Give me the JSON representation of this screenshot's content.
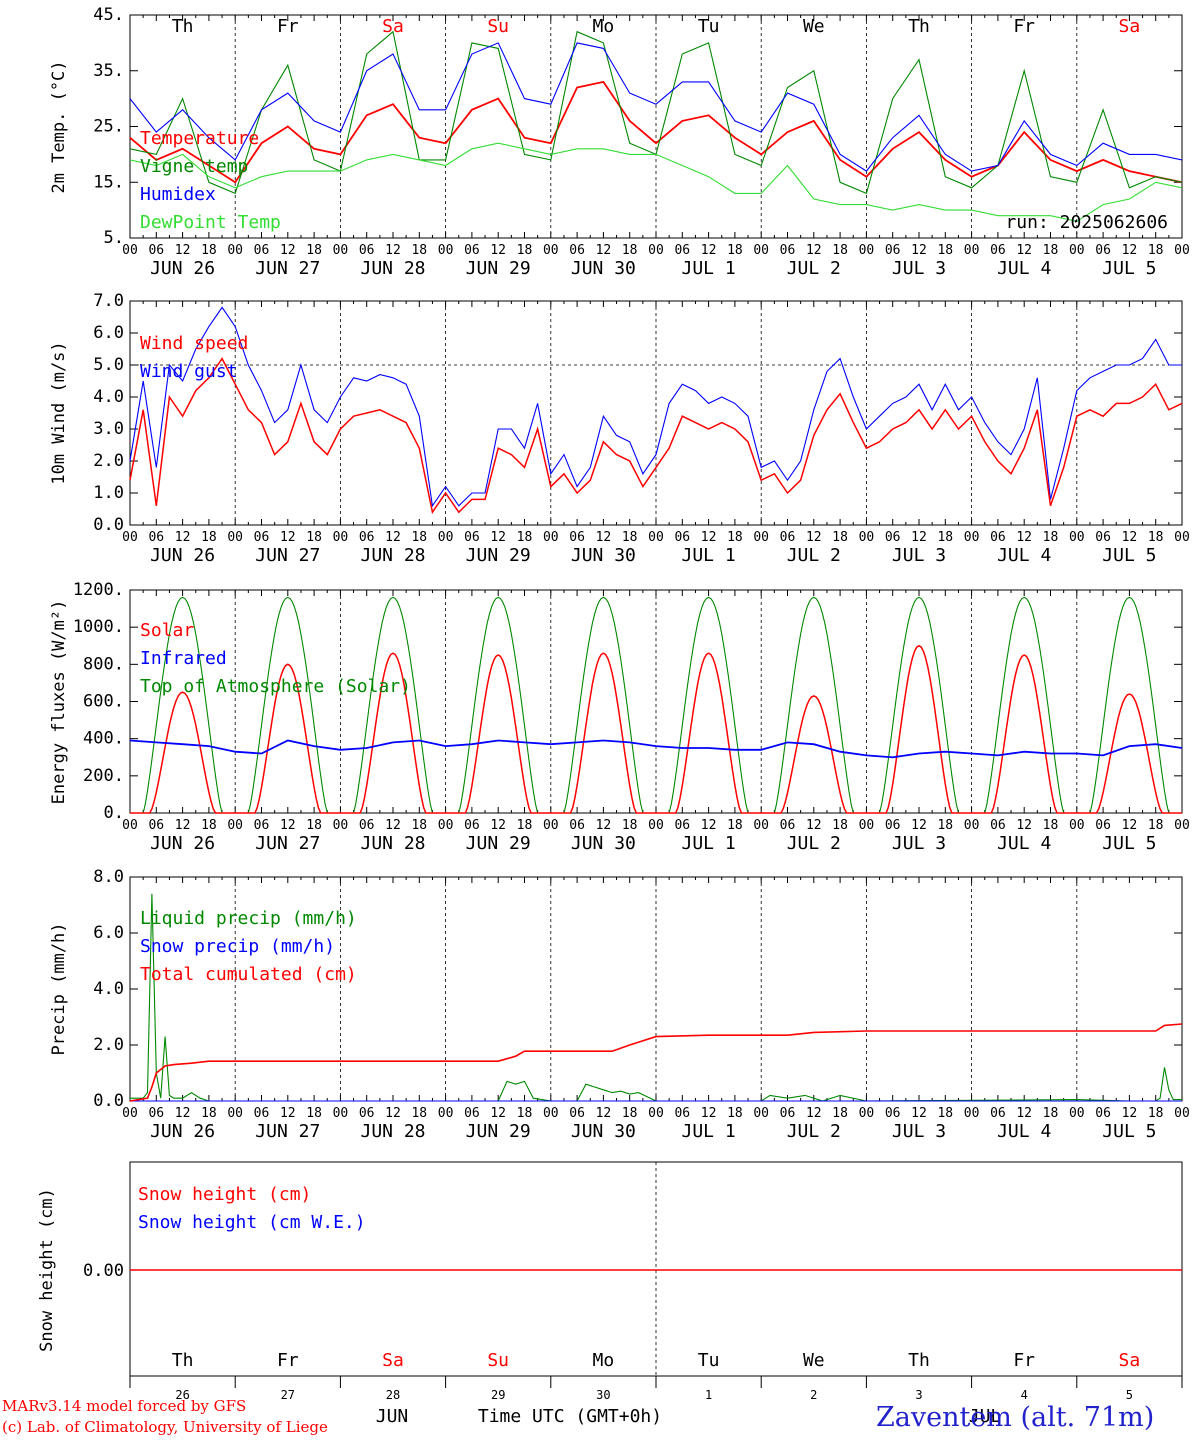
{
  "footer": {
    "model_line": "MARv3.14 model forced by GFS",
    "credit_line": "(c) Lab. of Climatology, University of Liege",
    "station": "Zaventem (alt. 71m)",
    "time_axis_label": "Time UTC (GMT+0h)",
    "month_left": "JUN",
    "month_right": "JUL"
  },
  "colors": {
    "red": "#ff0000",
    "green": "#008800",
    "blue": "#0000ff",
    "lightgreen": "#33dd33",
    "weekend": "#ff0000",
    "grid": "#000000",
    "station": "#2222cc"
  },
  "days": [
    {
      "dow": "Th",
      "date": "JUN 26",
      "num": "26",
      "weekend": false
    },
    {
      "dow": "Fr",
      "date": "JUN 27",
      "num": "27",
      "weekend": false
    },
    {
      "dow": "Sa",
      "date": "JUN 28",
      "num": "28",
      "weekend": true
    },
    {
      "dow": "Su",
      "date": "JUN 29",
      "num": "29",
      "weekend": true
    },
    {
      "dow": "Mo",
      "date": "JUN 30",
      "num": "30",
      "weekend": false
    },
    {
      "dow": "Tu",
      "date": "JUL  1",
      "num": "1",
      "weekend": false
    },
    {
      "dow": "We",
      "date": "JUL  2",
      "num": "2",
      "weekend": false
    },
    {
      "dow": "Th",
      "date": "JUL  3",
      "num": "3",
      "weekend": false
    },
    {
      "dow": "Fr",
      "date": "JUL  4",
      "num": "4",
      "weekend": false
    },
    {
      "dow": "Sa",
      "date": "JUL  5",
      "num": "5",
      "weekend": true
    }
  ],
  "hour_ticks": [
    "00",
    "06",
    "12",
    "18"
  ],
  "hour_end": "00",
  "chart_data": [
    {
      "id": "temp",
      "type": "line",
      "ylabel": "2m Temp. (°C)",
      "ylim": [
        5,
        45
      ],
      "yticks": [
        5,
        15,
        25,
        35,
        45
      ],
      "ytick_labels": [
        "5.",
        "15.",
        "25.",
        "35.",
        "45."
      ],
      "annotation": "run: 2025062606",
      "x_hours": [
        0,
        6,
        12,
        18,
        24,
        30,
        36,
        42,
        48,
        54,
        60,
        66,
        72,
        78,
        84,
        90,
        96,
        102,
        108,
        114,
        120,
        126,
        132,
        138,
        144,
        150,
        156,
        162,
        168,
        174,
        180,
        186,
        192,
        198,
        204,
        210,
        216,
        222,
        228,
        234,
        240
      ],
      "series": [
        {
          "name": "Temperature",
          "color": "red",
          "values": [
            23,
            19,
            21,
            18,
            15,
            22,
            25,
            21,
            20,
            27,
            29,
            23,
            22,
            28,
            30,
            23,
            22,
            32,
            33,
            26,
            22,
            26,
            27,
            23,
            20,
            24,
            26,
            19,
            16,
            21,
            24,
            19,
            16,
            18,
            24,
            19,
            17,
            19,
            17,
            16,
            15
          ]
        },
        {
          "name": "Vigne temp",
          "color": "green",
          "values": [
            21,
            20,
            30,
            15,
            13,
            28,
            36,
            19,
            17,
            38,
            42,
            19,
            19,
            40,
            39,
            20,
            19,
            42,
            40,
            22,
            20,
            38,
            40,
            20,
            18,
            32,
            35,
            15,
            13,
            30,
            37,
            16,
            14,
            18,
            35,
            16,
            15,
            28,
            14,
            16,
            15
          ]
        },
        {
          "name": "Humidex",
          "color": "blue",
          "values": [
            30,
            24,
            28,
            23,
            19,
            28,
            31,
            26,
            24,
            35,
            38,
            28,
            28,
            38,
            40,
            30,
            29,
            40,
            39,
            31,
            29,
            33,
            33,
            26,
            24,
            31,
            29,
            20,
            17,
            23,
            27,
            20,
            17,
            18,
            26,
            20,
            18,
            22,
            20,
            20,
            19
          ]
        },
        {
          "name": "DewPoint Temp",
          "color": "lightgreen",
          "values": [
            19,
            18,
            20,
            16,
            14,
            16,
            17,
            17,
            17,
            19,
            20,
            19,
            18,
            21,
            22,
            21,
            20,
            21,
            21,
            20,
            20,
            18,
            16,
            13,
            13,
            18,
            12,
            11,
            11,
            10,
            11,
            10,
            10,
            9,
            9,
            9,
            8,
            11,
            12,
            15,
            14
          ]
        }
      ]
    },
    {
      "id": "wind",
      "type": "line",
      "ylabel": "10m Wind (m/s)",
      "ylim": [
        0,
        7
      ],
      "yticks": [
        0,
        1,
        2,
        3,
        4,
        5,
        6,
        7
      ],
      "ytick_labels": [
        "0.0",
        "1.0",
        "2.0",
        "3.0",
        "4.0",
        "5.0",
        "6.0",
        "7.0"
      ],
      "reference_line": 5.0,
      "x_hours": [
        0,
        3,
        6,
        9,
        12,
        15,
        18,
        21,
        24,
        27,
        30,
        33,
        36,
        39,
        42,
        45,
        48,
        51,
        54,
        57,
        60,
        63,
        66,
        69,
        72,
        75,
        78,
        81,
        84,
        87,
        90,
        93,
        96,
        99,
        102,
        105,
        108,
        111,
        114,
        117,
        120,
        123,
        126,
        129,
        132,
        135,
        138,
        141,
        144,
        147,
        150,
        153,
        156,
        159,
        162,
        165,
        168,
        171,
        174,
        177,
        180,
        183,
        186,
        189,
        192,
        195,
        198,
        201,
        204,
        207,
        210,
        213,
        216,
        219,
        222,
        225,
        228,
        231,
        234,
        237,
        240
      ],
      "series": [
        {
          "name": "Wind speed",
          "color": "red",
          "values": [
            1.4,
            3.6,
            0.6,
            4.0,
            3.4,
            4.2,
            4.6,
            5.2,
            4.4,
            3.6,
            3.2,
            2.2,
            2.6,
            3.8,
            2.6,
            2.2,
            3.0,
            3.4,
            3.5,
            3.6,
            3.4,
            3.2,
            2.4,
            0.4,
            1.0,
            0.4,
            0.8,
            0.8,
            2.4,
            2.2,
            1.8,
            3.0,
            1.2,
            1.6,
            1.0,
            1.4,
            2.6,
            2.2,
            2.0,
            1.2,
            1.8,
            2.4,
            3.4,
            3.2,
            3.0,
            3.2,
            3.0,
            2.6,
            1.4,
            1.6,
            1.0,
            1.4,
            2.8,
            3.6,
            4.1,
            3.2,
            2.4,
            2.6,
            3.0,
            3.2,
            3.6,
            3.0,
            3.6,
            3.0,
            3.4,
            2.6,
            2.0,
            1.6,
            2.4,
            3.6,
            0.6,
            1.8,
            3.4,
            3.6,
            3.4,
            3.8,
            3.8,
            4.0,
            4.4,
            3.6,
            3.8
          ]
        },
        {
          "name": "Wind gust",
          "color": "blue",
          "values": [
            2.0,
            4.5,
            1.8,
            5.0,
            4.5,
            5.5,
            6.2,
            6.8,
            6.2,
            5.0,
            4.2,
            3.2,
            3.6,
            5.0,
            3.6,
            3.2,
            4.0,
            4.6,
            4.5,
            4.7,
            4.6,
            4.4,
            3.4,
            0.6,
            1.2,
            0.6,
            1.0,
            1.0,
            3.0,
            3.0,
            2.4,
            3.8,
            1.6,
            2.2,
            1.2,
            1.8,
            3.4,
            2.8,
            2.6,
            1.6,
            2.2,
            3.8,
            4.4,
            4.2,
            3.8,
            4.0,
            3.8,
            3.4,
            1.8,
            2.0,
            1.4,
            2.0,
            3.6,
            4.8,
            5.2,
            4.0,
            3.0,
            3.4,
            3.8,
            4.0,
            4.4,
            3.6,
            4.4,
            3.6,
            4.0,
            3.2,
            2.6,
            2.2,
            3.0,
            4.6,
            0.8,
            2.4,
            4.2,
            4.6,
            4.8,
            5.0,
            5.0,
            5.2,
            5.8,
            5.0,
            5.0
          ]
        }
      ]
    },
    {
      "id": "energy",
      "type": "line",
      "ylabel": "Energy fluxes (W/m²)",
      "ylim": [
        0,
        1200
      ],
      "yticks": [
        0,
        200,
        400,
        600,
        800,
        1000,
        1200
      ],
      "ytick_labels": [
        "0.",
        "200.",
        "400.",
        "600.",
        "800.",
        "1000.",
        "1200."
      ],
      "toa_peak": 1160,
      "solar_peaks": [
        650,
        800,
        860,
        850,
        860,
        860,
        630,
        900,
        850,
        640
      ],
      "series": [
        {
          "name": "Solar",
          "color": "red"
        },
        {
          "name": "Infrared",
          "color": "blue",
          "x_hours": [
            0,
            6,
            12,
            18,
            24,
            30,
            36,
            42,
            48,
            54,
            60,
            66,
            72,
            78,
            84,
            90,
            96,
            102,
            108,
            114,
            120,
            126,
            132,
            138,
            144,
            150,
            156,
            162,
            168,
            174,
            180,
            186,
            192,
            198,
            204,
            210,
            216,
            222,
            228,
            234,
            240
          ],
          "values": [
            390,
            380,
            370,
            360,
            330,
            320,
            390,
            360,
            340,
            350,
            380,
            390,
            360,
            370,
            390,
            380,
            370,
            380,
            390,
            380,
            360,
            350,
            350,
            340,
            340,
            380,
            370,
            330,
            310,
            300,
            320,
            330,
            320,
            310,
            330,
            320,
            320,
            310,
            360,
            370,
            350
          ]
        },
        {
          "name": "Top of Atmosphere (Solar)",
          "color": "green"
        }
      ]
    },
    {
      "id": "precip",
      "type": "line",
      "ylabel": "Precip (mm/h)",
      "ylim": [
        0,
        8
      ],
      "yticks": [
        0,
        2,
        4,
        6,
        8
      ],
      "ytick_labels": [
        "0.0",
        "2.0",
        "4.0",
        "6.0",
        "8.0"
      ],
      "series": [
        {
          "name": "Liquid precip (mm/h)",
          "color": "green",
          "x_hours": [
            0,
            3,
            4,
            5,
            6,
            7,
            8,
            9,
            10,
            12,
            14,
            16,
            18,
            24,
            84,
            86,
            88,
            90,
            92,
            96,
            102,
            104,
            106,
            108,
            110,
            112,
            114,
            116,
            120,
            144,
            146,
            150,
            154,
            158,
            162,
            168,
            216,
            228,
            234,
            235,
            236,
            237,
            238,
            240
          ],
          "values": [
            0.1,
            0.1,
            0.3,
            7.4,
            1.0,
            0.1,
            2.3,
            0.2,
            0.1,
            0.1,
            0.3,
            0.1,
            0,
            0,
            0,
            0.7,
            0.6,
            0.7,
            0.1,
            0,
            0,
            0.6,
            0.5,
            0.4,
            0.3,
            0.35,
            0.25,
            0.3,
            0,
            0,
            0.2,
            0.1,
            0.2,
            0,
            0.2,
            0,
            0.05,
            0,
            0,
            0.1,
            1.2,
            0.4,
            0.05,
            0.05
          ]
        },
        {
          "name": "Snow precip (mm/h)",
          "color": "blue",
          "x_hours": [
            0,
            240
          ],
          "values": [
            0,
            0
          ]
        },
        {
          "name": "Total cumulated (cm)",
          "color": "red",
          "x_hours": [
            0,
            4,
            5,
            6,
            8,
            10,
            14,
            18,
            24,
            84,
            88,
            90,
            110,
            114,
            120,
            132,
            150,
            156,
            168,
            234,
            236,
            240
          ],
          "values": [
            0,
            0.1,
            0.5,
            1.0,
            1.25,
            1.3,
            1.35,
            1.42,
            1.42,
            1.42,
            1.6,
            1.78,
            1.78,
            2.0,
            2.3,
            2.35,
            2.35,
            2.45,
            2.5,
            2.5,
            2.7,
            2.75
          ]
        }
      ]
    },
    {
      "id": "snow",
      "type": "line",
      "ylabel": "Snow height (cm)",
      "yticks": [
        0
      ],
      "ytick_labels": [
        "0.00"
      ],
      "series": [
        {
          "name": "Snow height (cm)",
          "color": "red",
          "x_hours": [
            0,
            240
          ],
          "values": [
            0,
            0
          ]
        },
        {
          "name": "Snow height (cm W.E.)",
          "color": "blue",
          "x_hours": [
            0,
            240
          ],
          "values": [
            0,
            0
          ]
        }
      ]
    }
  ]
}
